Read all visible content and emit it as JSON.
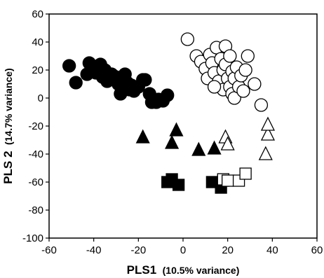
{
  "chart_data": {
    "type": "scatter",
    "xlabel_main": "PLS1",
    "xlabel_note": "(10.5% variance)",
    "ylabel_main": "PLS 2",
    "ylabel_note": "(14.7% variance)",
    "xlim": [
      -60,
      60
    ],
    "ylim": [
      -100,
      60
    ],
    "xticks": [
      -60,
      -40,
      -20,
      0,
      20,
      40,
      60
    ],
    "yticks": [
      -100,
      -80,
      -60,
      -40,
      -20,
      0,
      20,
      40,
      60
    ],
    "grid": false,
    "legend": "none",
    "series": [
      {
        "marker": "circle",
        "fill": "#000000",
        "points": [
          [
            -51,
            23
          ],
          [
            -48,
            11
          ],
          [
            -43,
            17
          ],
          [
            -42,
            25
          ],
          [
            -40,
            22
          ],
          [
            -39,
            18
          ],
          [
            -37,
            24
          ],
          [
            -36,
            15
          ],
          [
            -35,
            20
          ],
          [
            -34,
            12
          ],
          [
            -32,
            17
          ],
          [
            -30,
            15
          ],
          [
            -29,
            10
          ],
          [
            -28,
            3
          ],
          [
            -26,
            17
          ],
          [
            -25,
            11
          ],
          [
            -24,
            6
          ],
          [
            -23,
            9
          ],
          [
            -22,
            5
          ],
          [
            -20,
            8
          ],
          [
            -18,
            13
          ],
          [
            -17,
            13
          ],
          [
            -15,
            3
          ],
          [
            -14,
            -3
          ],
          [
            -12,
            -3
          ],
          [
            -11,
            -1
          ],
          [
            -9,
            -2
          ],
          [
            -7,
            2
          ]
        ]
      },
      {
        "marker": "circle",
        "fill": "#ffffff",
        "points": [
          [
            2,
            42
          ],
          [
            6,
            30
          ],
          [
            8,
            26
          ],
          [
            10,
            21
          ],
          [
            11,
            14
          ],
          [
            12,
            31
          ],
          [
            13,
            25
          ],
          [
            14,
            18
          ],
          [
            15,
            36
          ],
          [
            16,
            12
          ],
          [
            17,
            28
          ],
          [
            18,
            6
          ],
          [
            18,
            20
          ],
          [
            19,
            24
          ],
          [
            19,
            37
          ],
          [
            20,
            14
          ],
          [
            21,
            30
          ],
          [
            21,
            8
          ],
          [
            22,
            19
          ],
          [
            22,
            3
          ],
          [
            23,
            0
          ],
          [
            23,
            14
          ],
          [
            24,
            22
          ],
          [
            25,
            8
          ],
          [
            26,
            16
          ],
          [
            27,
            5
          ],
          [
            28,
            20
          ],
          [
            29,
            30
          ],
          [
            32,
            10
          ],
          [
            35,
            -5
          ],
          [
            14,
            8
          ]
        ]
      },
      {
        "marker": "triangle",
        "fill": "#000000",
        "points": [
          [
            -18,
            -28
          ],
          [
            -5,
            -32
          ],
          [
            -3,
            -23
          ],
          [
            7,
            -37
          ],
          [
            14,
            -36
          ]
        ]
      },
      {
        "marker": "triangle",
        "fill": "#ffffff",
        "points": [
          [
            19,
            -28
          ],
          [
            20,
            -33
          ],
          [
            37,
            -40
          ],
          [
            38,
            -26
          ],
          [
            38,
            -19
          ]
        ]
      },
      {
        "marker": "square",
        "fill": "#000000",
        "points": [
          [
            -7,
            -60
          ],
          [
            -5,
            -58
          ],
          [
            -2,
            -62
          ],
          [
            13,
            -60
          ],
          [
            17,
            -64
          ],
          [
            18,
            -59
          ]
        ]
      },
      {
        "marker": "square",
        "fill": "#ffffff",
        "points": [
          [
            18,
            -58
          ],
          [
            20,
            -59
          ],
          [
            25,
            -59
          ],
          [
            28,
            -54
          ]
        ]
      }
    ]
  }
}
